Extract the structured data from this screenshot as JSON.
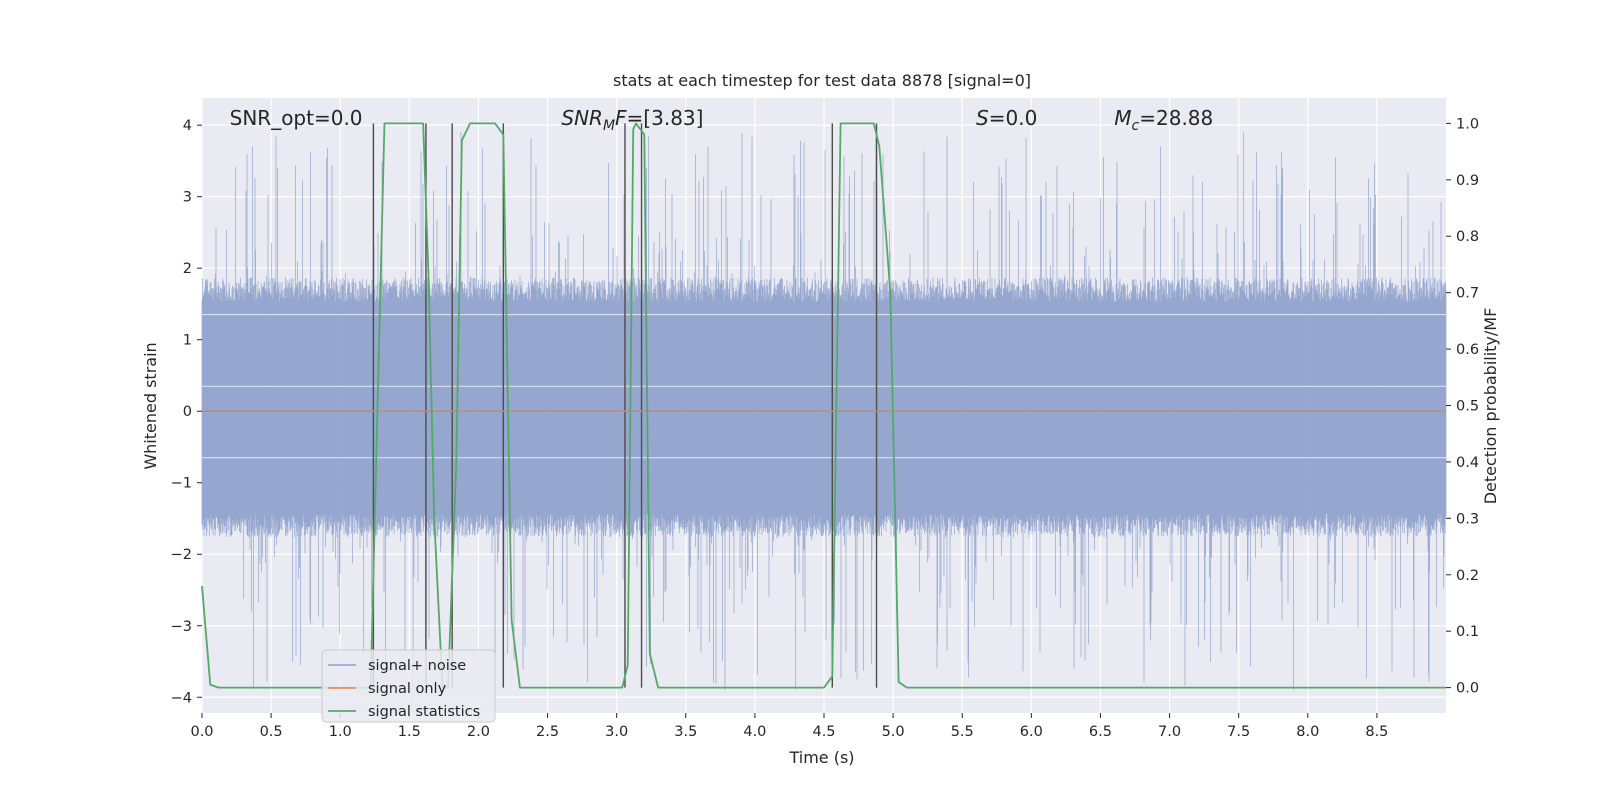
{
  "chart_data": {
    "type": "line",
    "title": "stats at each timestep for test data 8878 [signal=0]",
    "xlabel": "Time (s)",
    "ylabel": "Whitened strain",
    "ylabel_right": "Detection probability/MF",
    "xlim": [
      0.0,
      9.0
    ],
    "ylim": [
      -4.22,
      4.38
    ],
    "ylim_right": [
      -0.045,
      1.045
    ],
    "x_ticks": [
      0.0,
      0.5,
      1.0,
      1.5,
      2.0,
      2.5,
      3.0,
      3.5,
      4.0,
      4.5,
      5.0,
      5.5,
      6.0,
      6.5,
      7.0,
      7.5,
      8.0,
      8.5
    ],
    "x_tick_labels": [
      "0.0",
      "0.5",
      "1.0",
      "1.5",
      "2.0",
      "2.5",
      "3.0",
      "3.5",
      "4.0",
      "4.5",
      "5.0",
      "5.5",
      "6.0",
      "6.5",
      "7.0",
      "7.5",
      "8.0",
      "8.5"
    ],
    "y_ticks": [
      -4,
      -3,
      -2,
      -1,
      0,
      1,
      2,
      3,
      4
    ],
    "y_tick_labels": [
      "−4",
      "−3",
      "−2",
      "−1",
      "0",
      "1",
      "2",
      "3",
      "4"
    ],
    "y_right_ticks": [
      0.0,
      0.1,
      0.2,
      0.3,
      0.4,
      0.5,
      0.6,
      0.7,
      0.8,
      0.9,
      1.0
    ],
    "y_right_tick_labels": [
      "0.0",
      "0.1",
      "0.2",
      "0.3",
      "0.4",
      "0.5",
      "0.6",
      "0.7",
      "0.8",
      "0.9",
      "1.0"
    ],
    "grid": true,
    "legend_position": "lower-left",
    "annotations": [
      {
        "text": "SNR_opt=0.0",
        "x": 0.2,
        "y": 4.1
      },
      {
        "text": "SNR_MF=[3.83]",
        "x": 2.6,
        "y": 4.1
      },
      {
        "text": "S=0.0",
        "x": 5.6,
        "y": 4.1
      },
      {
        "text": "M_c=28.88",
        "x": 6.6,
        "y": 4.1
      }
    ],
    "series": [
      {
        "name": "signal+ noise",
        "color": "#8c9fcb",
        "description": "whitened noise, sampled continuously over 0.0-9.0 s with amplitude between about -3.9 and 4.0",
        "x_range": [
          0.0,
          9.0
        ],
        "envelope": {
          "bulk_low": -1.6,
          "bulk_high": 1.7,
          "peak_low": -3.9,
          "peak_high": 3.95
        }
      },
      {
        "name": "signal only",
        "color": "#dd8452",
        "x": [
          0.0,
          9.0
        ],
        "y": [
          0.0,
          0.0
        ]
      },
      {
        "name": "signal statistics",
        "color": "#55a868",
        "axis": "right",
        "x": [
          0.0,
          0.06,
          0.12,
          1.22,
          1.26,
          1.32,
          1.6,
          1.64,
          1.68,
          1.74,
          1.78,
          1.84,
          1.88,
          1.94,
          2.12,
          2.18,
          2.24,
          2.3,
          3.04,
          3.08,
          3.12,
          3.14,
          3.2,
          3.24,
          3.3,
          4.5,
          4.56,
          4.62,
          4.86,
          4.9,
          4.98,
          5.04,
          5.1,
          9.0
        ],
        "y": [
          0.18,
          0.005,
          0.0,
          0.0,
          0.4,
          1.0,
          1.0,
          0.72,
          0.3,
          0.0,
          0.0,
          0.4,
          0.97,
          1.0,
          1.0,
          0.98,
          0.12,
          0.0,
          0.0,
          0.04,
          0.99,
          1.0,
          0.98,
          0.06,
          0.0,
          0.0,
          0.02,
          1.0,
          1.0,
          0.96,
          0.7,
          0.01,
          0.0,
          0.0
        ]
      }
    ],
    "vertical_markers": [
      1.24,
      1.62,
      1.81,
      2.18,
      3.06,
      3.18,
      4.56,
      4.88
    ]
  }
}
